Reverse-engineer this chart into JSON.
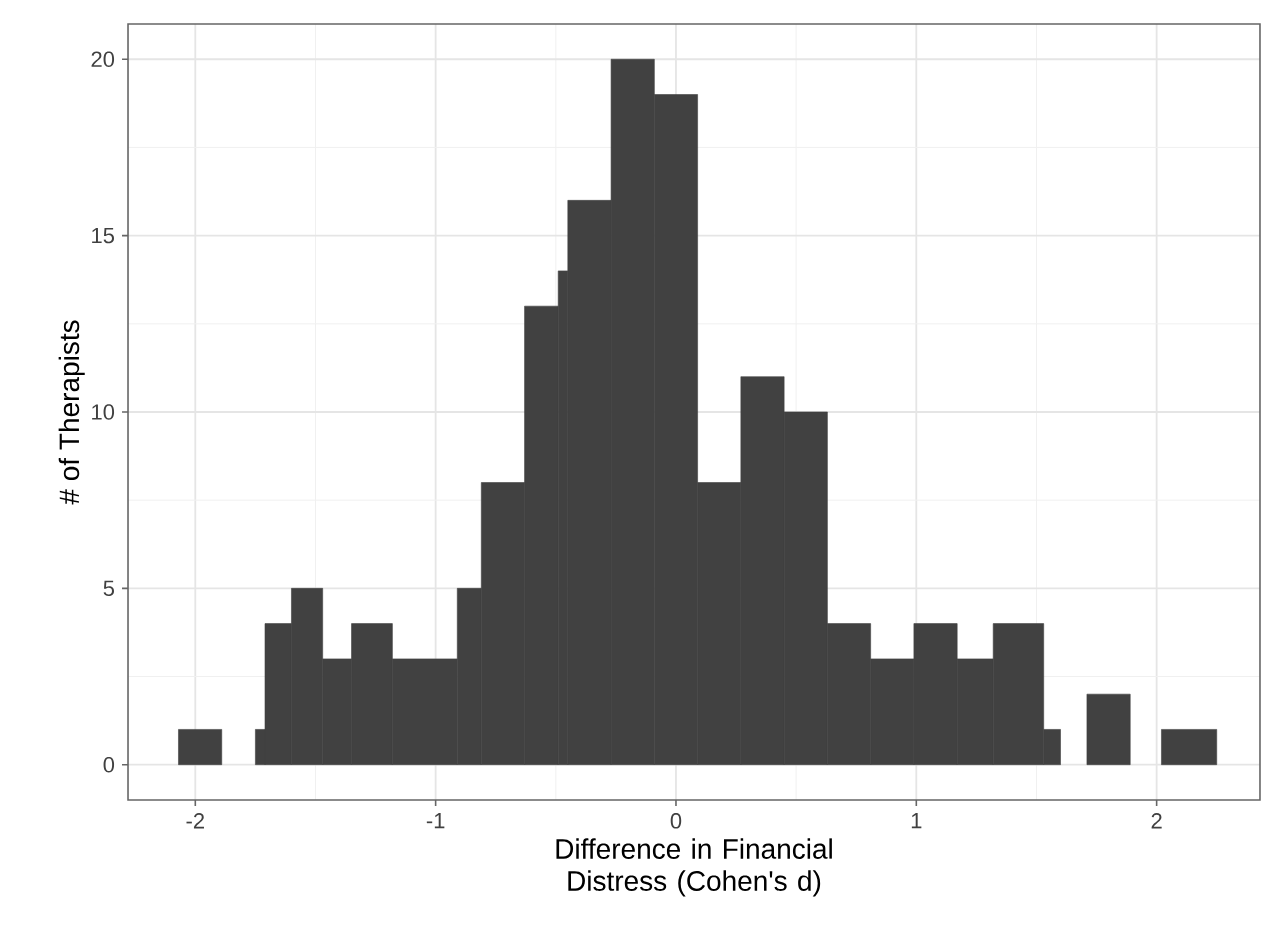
{
  "chart_data": {
    "type": "histogram",
    "xlabel": "Difference in Financial Distress (Cohen's d)",
    "ylabel": "# of Therapists",
    "bins": [
      -2.07,
      -1.89,
      -1.75,
      -1.71,
      -1.6,
      -1.47,
      -1.35,
      -1.18,
      -0.91,
      -0.81,
      -0.63,
      -0.49,
      -0.45,
      -0.27,
      -0.09,
      0.09,
      0.27,
      0.45,
      0.63,
      0.81,
      0.99,
      1.17,
      1.32,
      1.53,
      1.6,
      1.71,
      1.89,
      2.02,
      2.25
    ],
    "values": [
      1,
      0,
      1,
      4,
      5,
      3,
      4,
      3,
      5,
      8,
      13,
      14,
      16,
      20,
      19,
      8,
      11,
      10,
      4,
      3,
      4,
      3,
      4,
      1,
      0,
      2,
      0,
      1
    ],
    "color": "#414141",
    "xlim": [
      -2.28,
      2.43
    ],
    "ylim": [
      -1,
      21
    ],
    "xticks": [
      -2,
      -1,
      0,
      1,
      2
    ],
    "yticks": [
      0,
      5,
      10,
      15,
      20
    ],
    "grid": true
  }
}
